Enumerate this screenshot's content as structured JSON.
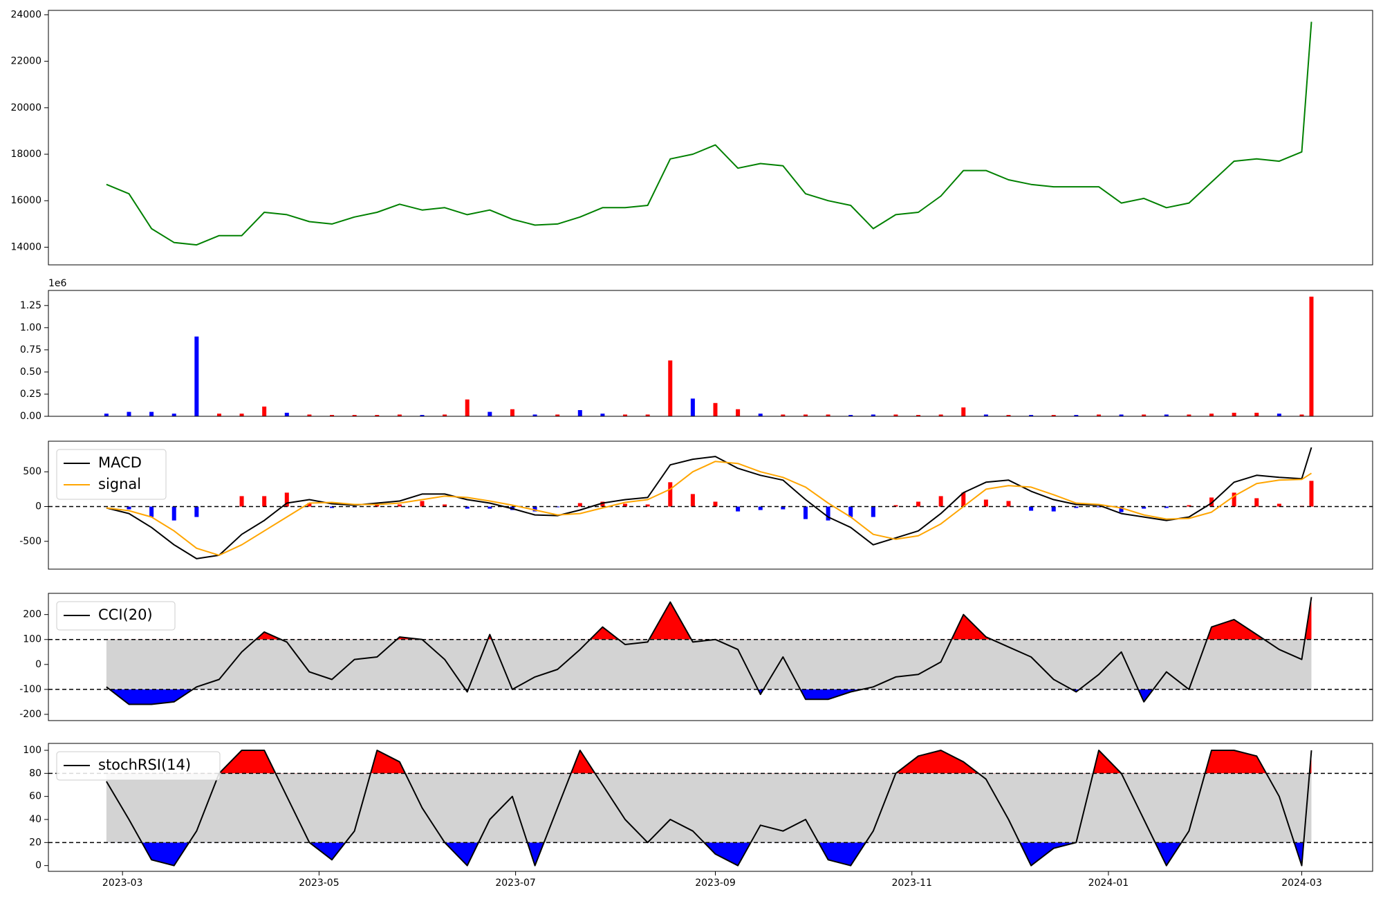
{
  "chart_data": [
    {
      "type": "line",
      "x": [
        "2023-02-24",
        "2023-03-03",
        "2023-03-10",
        "2023-03-17",
        "2023-03-24",
        "2023-03-31",
        "2023-04-07",
        "2023-04-14",
        "2023-04-21",
        "2023-04-28",
        "2023-05-05",
        "2023-05-12",
        "2023-05-19",
        "2023-05-26",
        "2023-06-02",
        "2023-06-09",
        "2023-06-16",
        "2023-06-23",
        "2023-06-30",
        "2023-07-07",
        "2023-07-14",
        "2023-07-21",
        "2023-07-28",
        "2023-08-04",
        "2023-08-11",
        "2023-08-18",
        "2023-08-25",
        "2023-09-01",
        "2023-09-08",
        "2023-09-15",
        "2023-09-22",
        "2023-09-29",
        "2023-10-06",
        "2023-10-13",
        "2023-10-20",
        "2023-10-27",
        "2023-11-03",
        "2023-11-10",
        "2023-11-17",
        "2023-11-24",
        "2023-12-01",
        "2023-12-08",
        "2023-12-15",
        "2023-12-22",
        "2023-12-29",
        "2024-01-05",
        "2024-01-12",
        "2024-01-19",
        "2024-01-26",
        "2024-02-02",
        "2024-02-09",
        "2024-02-16",
        "2024-02-23",
        "2024-03-01",
        "2024-03-04"
      ],
      "values": [
        16700,
        16300,
        14800,
        14200,
        14100,
        14500,
        14500,
        15500,
        15400,
        15100,
        15000,
        15300,
        15500,
        15850,
        15600,
        15700,
        15400,
        15600,
        15200,
        14950,
        15000,
        15300,
        15700,
        15700,
        15800,
        17800,
        18000,
        18400,
        17400,
        17600,
        17500,
        16300,
        16000,
        15800,
        14800,
        15400,
        15500,
        16200,
        17300,
        17300,
        16900,
        16700,
        16600,
        16600,
        16600,
        15900,
        16100,
        15700,
        15900,
        16800,
        17700,
        17800,
        17700,
        18100,
        23700
      ],
      "color": "green",
      "xlim": [
        "2023-02-06",
        "2024-03-23"
      ],
      "ylim": [
        13240,
        24190
      ],
      "yticks": [
        14000,
        16000,
        18000,
        20000,
        22000,
        24000
      ]
    },
    {
      "type": "bar",
      "offset_label": "1e6",
      "x": [
        "2023-02-24",
        "2023-03-03",
        "2023-03-10",
        "2023-03-17",
        "2023-03-24",
        "2023-03-31",
        "2023-04-07",
        "2023-04-14",
        "2023-04-21",
        "2023-04-28",
        "2023-05-05",
        "2023-05-12",
        "2023-05-19",
        "2023-05-26",
        "2023-06-02",
        "2023-06-09",
        "2023-06-16",
        "2023-06-23",
        "2023-06-30",
        "2023-07-07",
        "2023-07-14",
        "2023-07-21",
        "2023-07-28",
        "2023-08-04",
        "2023-08-11",
        "2023-08-18",
        "2023-08-25",
        "2023-09-01",
        "2023-09-08",
        "2023-09-15",
        "2023-09-22",
        "2023-09-29",
        "2023-10-06",
        "2023-10-13",
        "2023-10-20",
        "2023-10-27",
        "2023-11-03",
        "2023-11-10",
        "2023-11-17",
        "2023-11-24",
        "2023-12-01",
        "2023-12-08",
        "2023-12-15",
        "2023-12-22",
        "2023-12-29",
        "2024-01-05",
        "2024-01-12",
        "2024-01-19",
        "2024-01-26",
        "2024-02-02",
        "2024-02-09",
        "2024-02-16",
        "2024-02-23",
        "2024-03-01",
        "2024-03-04"
      ],
      "values": [
        30000,
        50000,
        50000,
        30000,
        900000,
        30000,
        30000,
        110000,
        40000,
        20000,
        15000,
        15000,
        15000,
        20000,
        15000,
        20000,
        190000,
        50000,
        80000,
        20000,
        20000,
        70000,
        30000,
        20000,
        20000,
        630000,
        200000,
        150000,
        80000,
        30000,
        20000,
        20000,
        20000,
        15000,
        20000,
        20000,
        15000,
        20000,
        100000,
        20000,
        15000,
        15000,
        15000,
        15000,
        20000,
        20000,
        20000,
        20000,
        20000,
        30000,
        40000,
        40000,
        30000,
        20000,
        1350000
      ],
      "colors": [
        "blue",
        "blue",
        "blue",
        "blue",
        "blue",
        "red",
        "red",
        "red",
        "blue",
        "red",
        "red",
        "red",
        "red",
        "red",
        "blue",
        "red",
        "red",
        "blue",
        "red",
        "blue",
        "red",
        "blue",
        "blue",
        "red",
        "red",
        "red",
        "blue",
        "red",
        "red",
        "blue",
        "red",
        "red",
        "red",
        "blue",
        "blue",
        "red",
        "red",
        "red",
        "red",
        "blue",
        "red",
        "blue",
        "red",
        "blue",
        "red",
        "blue",
        "red",
        "blue",
        "red",
        "red",
        "red",
        "red",
        "blue",
        "red",
        "red"
      ],
      "xlim": [
        "2023-02-06",
        "2024-03-23"
      ],
      "ylim": [
        0,
        1420000
      ],
      "yticks": [
        {
          "value": 0,
          "label": "0.00"
        },
        {
          "value": 250000,
          "label": "0.25"
        },
        {
          "value": 500000,
          "label": "0.50"
        },
        {
          "value": 750000,
          "label": "0.75"
        },
        {
          "value": 1000000,
          "label": "1.00"
        },
        {
          "value": 1250000,
          "label": "1.25"
        }
      ]
    },
    {
      "type": "macd",
      "x": [
        "2023-02-24",
        "2023-03-03",
        "2023-03-10",
        "2023-03-17",
        "2023-03-24",
        "2023-03-31",
        "2023-04-07",
        "2023-04-14",
        "2023-04-21",
        "2023-04-28",
        "2023-05-05",
        "2023-05-12",
        "2023-05-19",
        "2023-05-26",
        "2023-06-02",
        "2023-06-09",
        "2023-06-16",
        "2023-06-23",
        "2023-06-30",
        "2023-07-07",
        "2023-07-14",
        "2023-07-21",
        "2023-07-28",
        "2023-08-04",
        "2023-08-11",
        "2023-08-18",
        "2023-08-25",
        "2023-09-01",
        "2023-09-08",
        "2023-09-15",
        "2023-09-22",
        "2023-09-29",
        "2023-10-06",
        "2023-10-13",
        "2023-10-20",
        "2023-10-27",
        "2023-11-03",
        "2023-11-10",
        "2023-11-17",
        "2023-11-24",
        "2023-12-01",
        "2023-12-08",
        "2023-12-15",
        "2023-12-22",
        "2023-12-29",
        "2024-01-05",
        "2024-01-12",
        "2024-01-19",
        "2024-01-26",
        "2024-02-02",
        "2024-02-09",
        "2024-02-16",
        "2024-02-23",
        "2024-03-01",
        "2024-03-04"
      ],
      "series": [
        {
          "name": "MACD",
          "color": "black",
          "values": [
            -20,
            -100,
            -300,
            -550,
            -750,
            -700,
            -400,
            -200,
            50,
            100,
            40,
            20,
            50,
            80,
            180,
            180,
            100,
            50,
            -30,
            -120,
            -130,
            -50,
            50,
            100,
            130,
            600,
            680,
            720,
            550,
            450,
            380,
            100,
            -150,
            -300,
            -550,
            -450,
            -350,
            -100,
            200,
            350,
            380,
            220,
            100,
            30,
            20,
            -100,
            -150,
            -200,
            -150,
            50,
            350,
            450,
            420,
            400,
            850
          ]
        },
        {
          "name": "signal",
          "color": "orange",
          "values": [
            -20,
            -60,
            -150,
            -350,
            -600,
            -700,
            -550,
            -350,
            -150,
            50,
            60,
            30,
            30,
            50,
            100,
            150,
            130,
            80,
            20,
            -50,
            -120,
            -100,
            -20,
            60,
            100,
            250,
            500,
            650,
            620,
            500,
            420,
            280,
            50,
            -150,
            -400,
            -470,
            -420,
            -250,
            0,
            250,
            300,
            280,
            170,
            50,
            30,
            -20,
            -120,
            -180,
            -170,
            -80,
            150,
            330,
            380,
            390,
            480
          ]
        }
      ],
      "histogram": [
        0,
        -40,
        -150,
        -200,
        -150,
        0,
        150,
        150,
        200,
        50,
        -20,
        -10,
        20,
        30,
        80,
        30,
        -30,
        -30,
        -50,
        -70,
        -10,
        50,
        70,
        40,
        30,
        350,
        180,
        70,
        -70,
        -50,
        -40,
        -180,
        -200,
        -150,
        -150,
        20,
        70,
        150,
        200,
        100,
        80,
        -60,
        -70,
        -20,
        -10,
        -80,
        -30,
        -20,
        20,
        130,
        200,
        120,
        40,
        10,
        370
      ],
      "up_color": "red",
      "down_color": "blue",
      "zero_line": 0,
      "xlim": [
        "2023-02-06",
        "2024-03-23"
      ],
      "ylim": [
        -900,
        940
      ],
      "yticks": [
        -500,
        0,
        500
      ],
      "legend": "upper left"
    },
    {
      "type": "oscillator",
      "x": [
        "2023-02-24",
        "2023-03-03",
        "2023-03-10",
        "2023-03-17",
        "2023-03-24",
        "2023-03-31",
        "2023-04-07",
        "2023-04-14",
        "2023-04-21",
        "2023-04-28",
        "2023-05-05",
        "2023-05-12",
        "2023-05-19",
        "2023-05-26",
        "2023-06-02",
        "2023-06-09",
        "2023-06-16",
        "2023-06-23",
        "2023-06-30",
        "2023-07-07",
        "2023-07-14",
        "2023-07-21",
        "2023-07-28",
        "2023-08-04",
        "2023-08-11",
        "2023-08-18",
        "2023-08-25",
        "2023-09-01",
        "2023-09-08",
        "2023-09-15",
        "2023-09-22",
        "2023-09-29",
        "2023-10-06",
        "2023-10-13",
        "2023-10-20",
        "2023-10-27",
        "2023-11-03",
        "2023-11-10",
        "2023-11-17",
        "2023-11-24",
        "2023-12-01",
        "2023-12-08",
        "2023-12-15",
        "2023-12-22",
        "2023-12-29",
        "2024-01-05",
        "2024-01-12",
        "2024-01-19",
        "2024-01-26",
        "2024-02-02",
        "2024-02-09",
        "2024-02-16",
        "2024-02-23",
        "2024-03-01",
        "2024-03-04"
      ],
      "series": [
        {
          "name": "CCI(20)",
          "color": "black",
          "values": [
            -90,
            -160,
            -160,
            -150,
            -90,
            -60,
            50,
            130,
            90,
            -30,
            -60,
            20,
            30,
            110,
            100,
            20,
            -110,
            120,
            -100,
            -50,
            -20,
            60,
            150,
            80,
            90,
            250,
            90,
            100,
            60,
            -120,
            30,
            -140,
            -140,
            -110,
            -90,
            -50,
            -40,
            10,
            200,
            110,
            70,
            30,
            -60,
            -110,
            -40,
            50,
            -150,
            -30,
            -100,
            150,
            180,
            120,
            60,
            20,
            270
          ]
        }
      ],
      "thresholds": [
        100,
        -100
      ],
      "band_color": "lightgray",
      "above_color": "red",
      "below_color": "blue",
      "xlim": [
        "2023-02-06",
        "2024-03-23"
      ],
      "ylim": [
        -225,
        285
      ],
      "yticks": [
        -200,
        -100,
        0,
        100,
        200
      ],
      "legend": "upper left"
    },
    {
      "type": "oscillator",
      "x": [
        "2023-02-24",
        "2023-03-03",
        "2023-03-10",
        "2023-03-17",
        "2023-03-24",
        "2023-03-31",
        "2023-04-07",
        "2023-04-14",
        "2023-04-21",
        "2023-04-28",
        "2023-05-05",
        "2023-05-12",
        "2023-05-19",
        "2023-05-26",
        "2023-06-02",
        "2023-06-09",
        "2023-06-16",
        "2023-06-23",
        "2023-06-30",
        "2023-07-07",
        "2023-07-14",
        "2023-07-21",
        "2023-07-28",
        "2023-08-04",
        "2023-08-11",
        "2023-08-18",
        "2023-08-25",
        "2023-09-01",
        "2023-09-08",
        "2023-09-15",
        "2023-09-22",
        "2023-09-29",
        "2023-10-06",
        "2023-10-13",
        "2023-10-20",
        "2023-10-27",
        "2023-11-03",
        "2023-11-10",
        "2023-11-17",
        "2023-11-24",
        "2023-12-01",
        "2023-12-08",
        "2023-12-15",
        "2023-12-22",
        "2023-12-29",
        "2024-01-05",
        "2024-01-12",
        "2024-01-19",
        "2024-01-26",
        "2024-02-02",
        "2024-02-09",
        "2024-02-16",
        "2024-02-23",
        "2024-03-01",
        "2024-03-04"
      ],
      "series": [
        {
          "name": "stochRSI(14)",
          "color": "black",
          "values": [
            73,
            40,
            5,
            0,
            30,
            80,
            100,
            100,
            60,
            20,
            5,
            30,
            100,
            90,
            50,
            20,
            0,
            40,
            60,
            0,
            50,
            100,
            70,
            40,
            20,
            40,
            30,
            10,
            0,
            35,
            30,
            40,
            5,
            0,
            30,
            80,
            95,
            100,
            90,
            75,
            40,
            0,
            15,
            20,
            100,
            80,
            40,
            0,
            30,
            100,
            100,
            95,
            60,
            0,
            100
          ]
        }
      ],
      "thresholds": [
        80,
        20
      ],
      "band_color": "lightgray",
      "above_color": "red",
      "below_color": "blue",
      "xlim": [
        "2023-02-06",
        "2024-03-23"
      ],
      "ylim": [
        -5,
        106
      ],
      "yticks": [
        0,
        20,
        40,
        60,
        80,
        100
      ],
      "legend": "upper left",
      "xticks": [
        {
          "value": "2023-03-01",
          "label": "2023-03"
        },
        {
          "value": "2023-05-01",
          "label": "2023-05"
        },
        {
          "value": "2023-07-01",
          "label": "2023-07"
        },
        {
          "value": "2023-09-01",
          "label": "2023-09"
        },
        {
          "value": "2023-11-01",
          "label": "2023-11"
        },
        {
          "value": "2024-01-01",
          "label": "2024-01"
        },
        {
          "value": "2024-03-01",
          "label": "2024-03"
        }
      ]
    }
  ]
}
